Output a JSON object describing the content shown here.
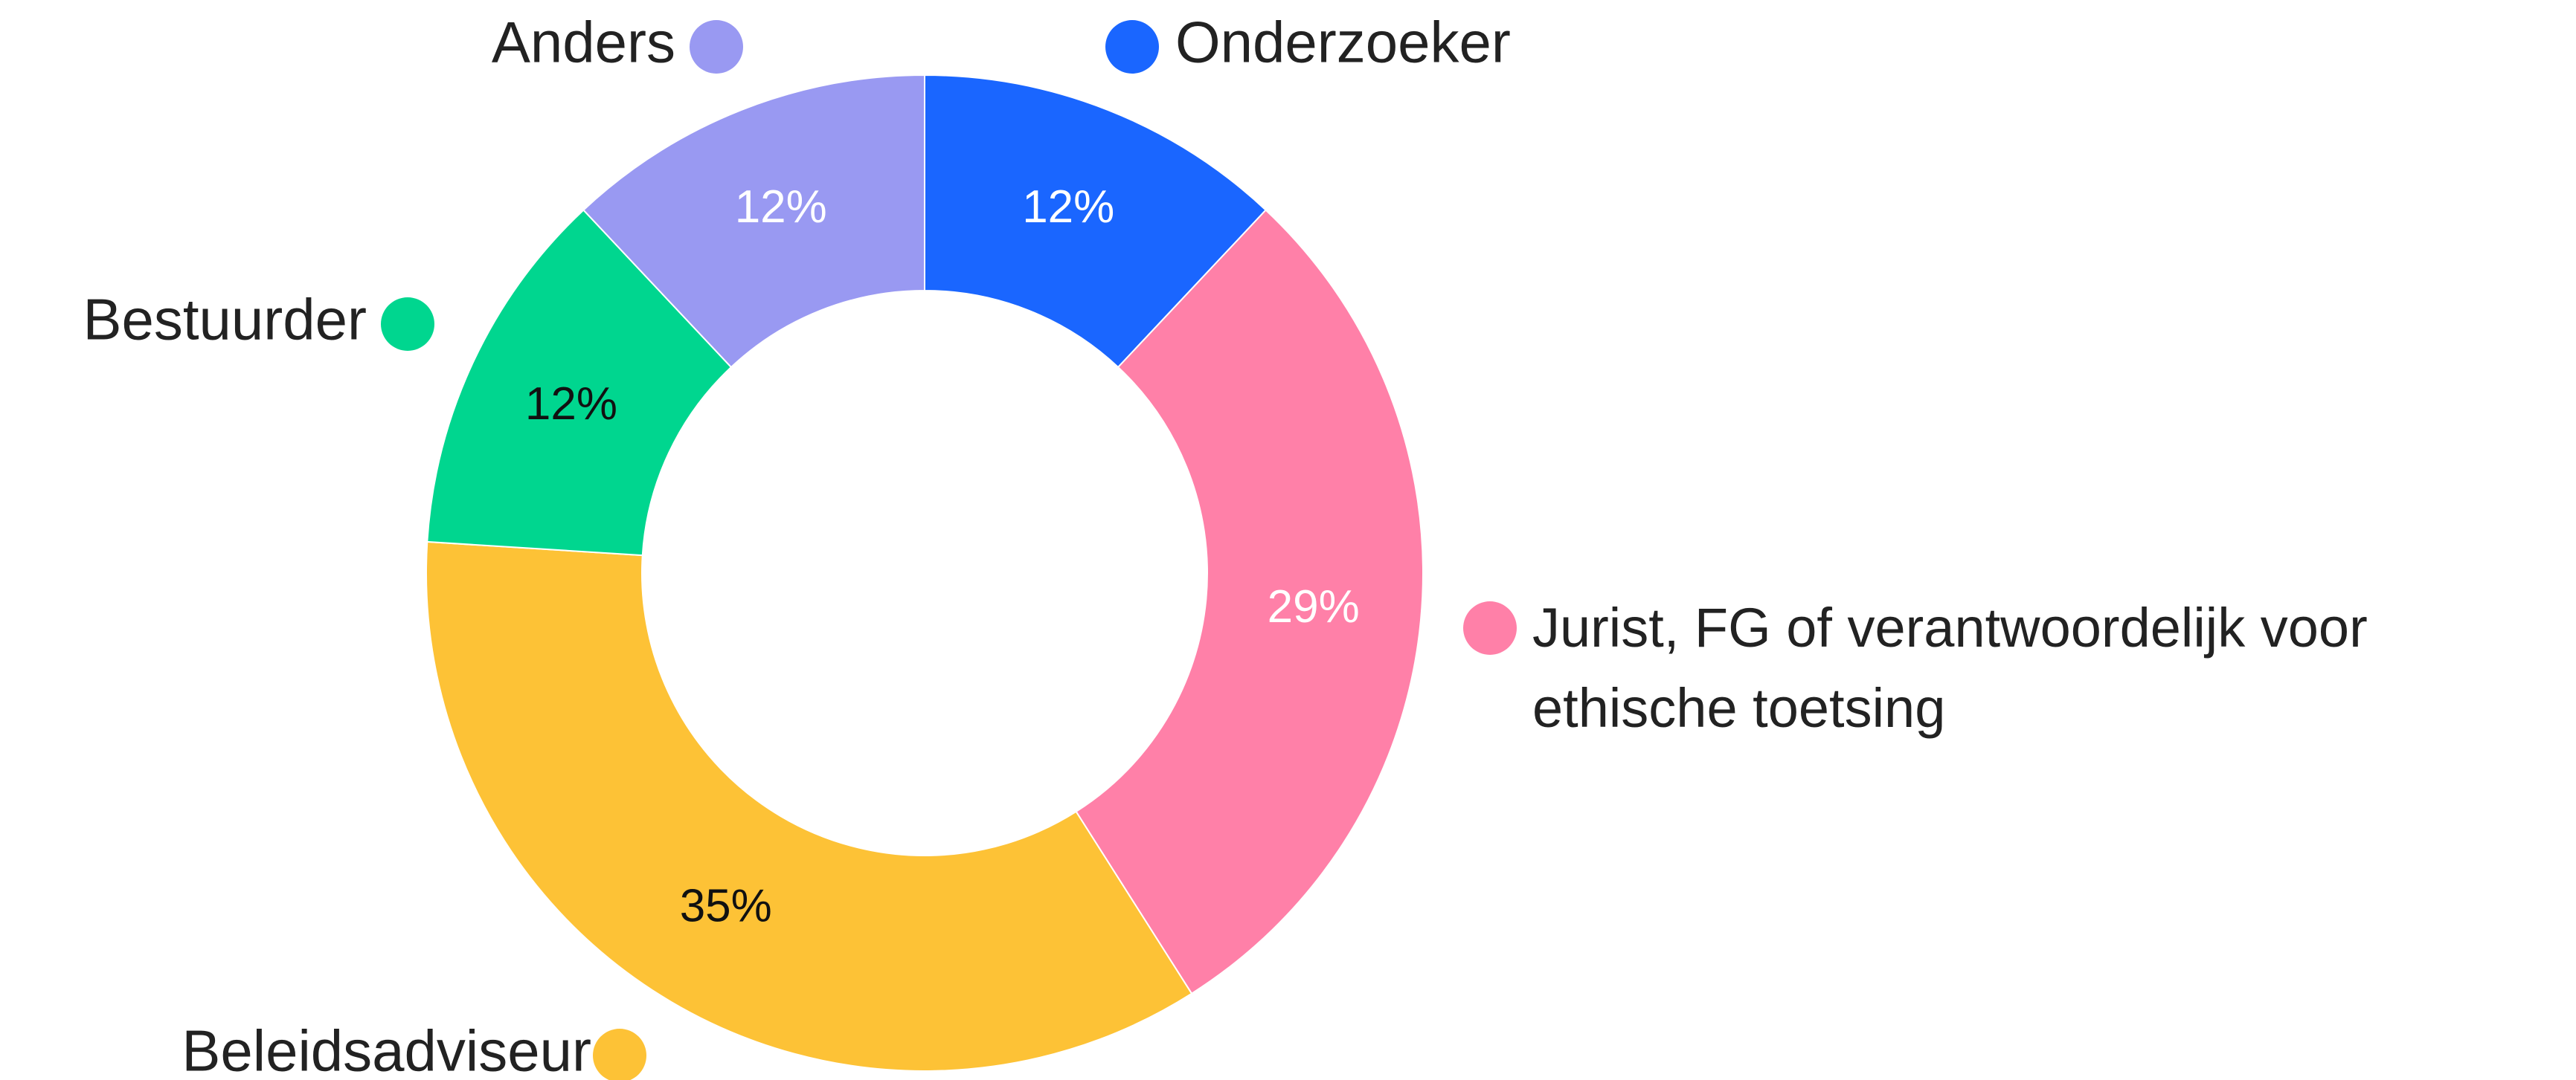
{
  "chart_data": {
    "type": "donut",
    "categories": [
      "Onderzoeker",
      "Jurist, FG of verantwoordelijk voor ethische toetsing",
      "Beleidsadviseur",
      "Bestuurder",
      "Anders"
    ],
    "values": [
      12,
      29,
      35,
      12,
      12
    ],
    "value_labels": [
      "12%",
      "29%",
      "35%",
      "12%",
      "12%"
    ],
    "colors": [
      "#1a66ff",
      "#ff80a8",
      "#fdc236",
      "#00d68f",
      "#9999f2"
    ],
    "label_colors": [
      "#ffffff",
      "#ffffff",
      "#111111",
      "#111111",
      "#ffffff"
    ]
  }
}
